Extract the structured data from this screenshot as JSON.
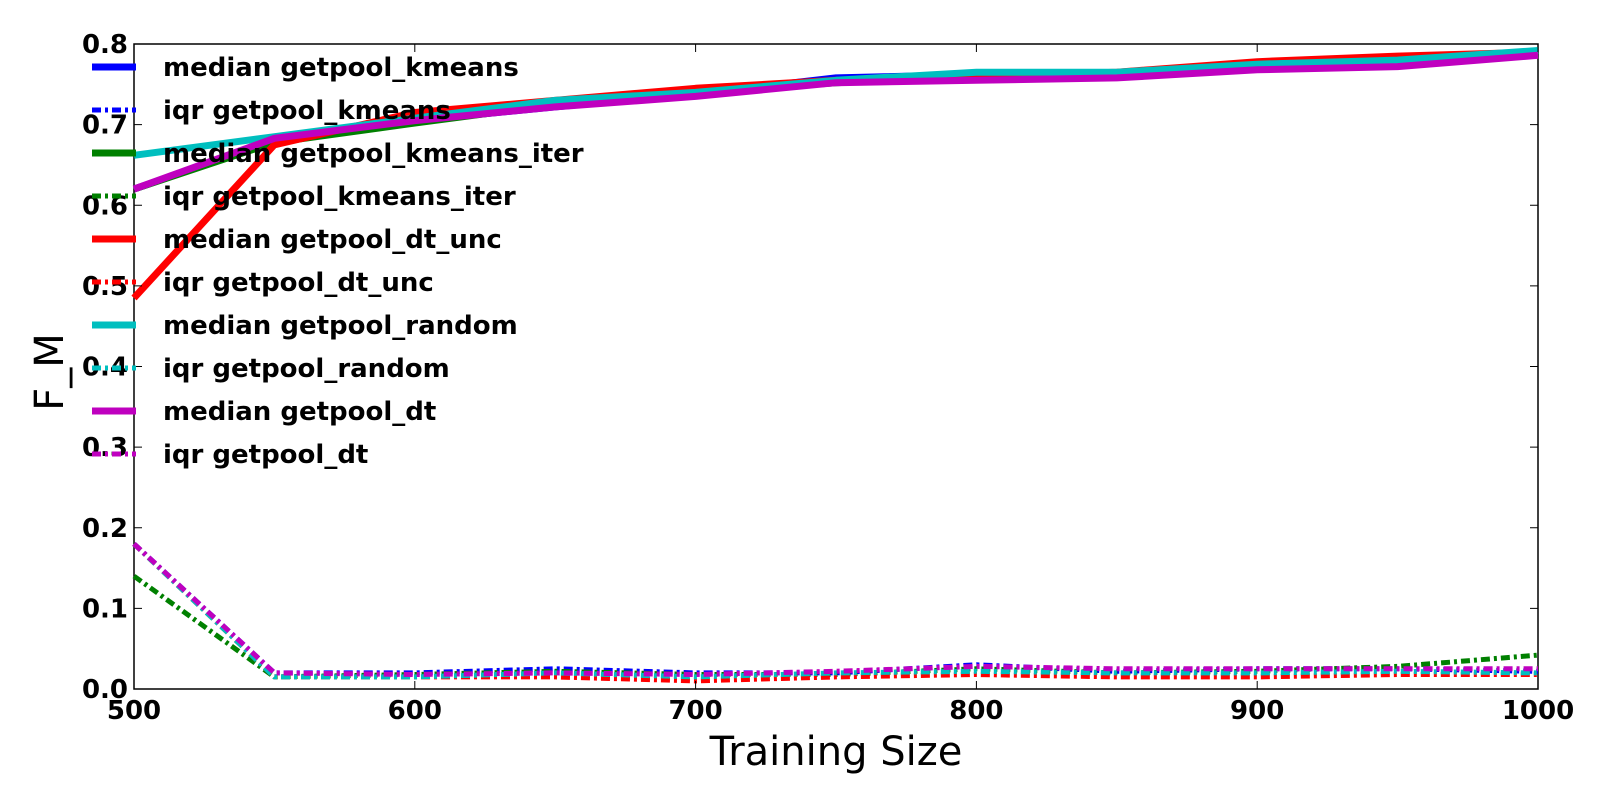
{
  "chart_data": {
    "type": "line",
    "title": "",
    "xlabel": "Training Size",
    "ylabel": "F_M",
    "xlim": [
      500,
      1000
    ],
    "ylim": [
      0.0,
      0.8
    ],
    "xticks": [
      500,
      600,
      700,
      800,
      900,
      1000
    ],
    "yticks": [
      0.0,
      0.1,
      0.2,
      0.3,
      0.4,
      0.5,
      0.6,
      0.7,
      0.8
    ],
    "xtick_labels": [
      "500",
      "600",
      "700",
      "800",
      "900",
      "1000"
    ],
    "ytick_labels": [
      "0.0",
      "0.1",
      "0.2",
      "0.3",
      "0.4",
      "0.5",
      "0.6",
      "0.7",
      "0.8"
    ],
    "grid": false,
    "legend_position": "top-left",
    "x": [
      500,
      550,
      600,
      650,
      700,
      750,
      800,
      850,
      900,
      950,
      1000
    ],
    "series": [
      {
        "name": "median getpool_kmeans",
        "color": "#0000ff",
        "style": "solid",
        "values": [
          0.62,
          0.68,
          0.705,
          0.722,
          0.738,
          0.758,
          0.762,
          0.762,
          0.775,
          0.782,
          0.79
        ]
      },
      {
        "name": "iqr getpool_kmeans",
        "color": "#0000ff",
        "style": "dashdot",
        "values": [
          0.18,
          0.02,
          0.02,
          0.025,
          0.02,
          0.02,
          0.03,
          0.022,
          0.025,
          0.025,
          0.022
        ]
      },
      {
        "name": "median getpool_kmeans_iter",
        "color": "#008000",
        "style": "solid",
        "values": [
          0.62,
          0.678,
          0.702,
          0.725,
          0.74,
          0.752,
          0.76,
          0.762,
          0.775,
          0.78,
          0.788
        ]
      },
      {
        "name": "iqr getpool_kmeans_iter",
        "color": "#008000",
        "style": "dashdot",
        "values": [
          0.14,
          0.015,
          0.018,
          0.022,
          0.018,
          0.018,
          0.025,
          0.02,
          0.022,
          0.028,
          0.042
        ]
      },
      {
        "name": "median getpool_dt_unc",
        "color": "#ff0000",
        "style": "solid",
        "values": [
          0.485,
          0.675,
          0.715,
          0.73,
          0.745,
          0.755,
          0.76,
          0.765,
          0.778,
          0.785,
          0.79
        ]
      },
      {
        "name": "iqr getpool_dt_unc",
        "color": "#ff0000",
        "style": "dashdot",
        "values": [
          0.18,
          0.015,
          0.015,
          0.015,
          0.01,
          0.015,
          0.018,
          0.015,
          0.015,
          0.018,
          0.018
        ]
      },
      {
        "name": "median getpool_random",
        "color": "#00bfbf",
        "style": "solid",
        "values": [
          0.662,
          0.685,
          0.708,
          0.73,
          0.74,
          0.755,
          0.765,
          0.765,
          0.775,
          0.78,
          0.792
        ]
      },
      {
        "name": "iqr getpool_random",
        "color": "#00bfbf",
        "style": "dashdot",
        "values": [
          0.18,
          0.015,
          0.015,
          0.02,
          0.015,
          0.02,
          0.022,
          0.02,
          0.02,
          0.022,
          0.02
        ]
      },
      {
        "name": "median getpool_dt",
        "color": "#bf00bf",
        "style": "solid",
        "values": [
          0.62,
          0.683,
          0.705,
          0.722,
          0.735,
          0.752,
          0.755,
          0.758,
          0.768,
          0.772,
          0.786
        ]
      },
      {
        "name": "iqr getpool_dt",
        "color": "#bf00bf",
        "style": "dashdot",
        "values": [
          0.18,
          0.02,
          0.018,
          0.02,
          0.018,
          0.022,
          0.028,
          0.025,
          0.025,
          0.025,
          0.025
        ]
      }
    ]
  }
}
